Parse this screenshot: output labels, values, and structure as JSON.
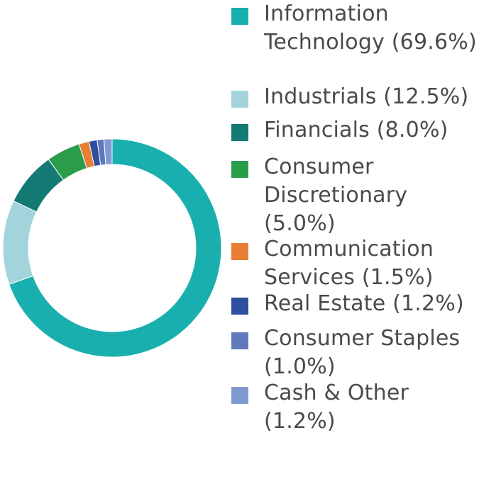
{
  "chart_data": {
    "type": "pie",
    "title": "",
    "donut": true,
    "start_angle_deg": 0,
    "direction": "clockwise",
    "legend_position": "right",
    "categories": [
      "Information Technology (69.6%)",
      "Industrials (12.5%)",
      "Financials (8.0%)",
      "Consumer Discretionary (5.0%)",
      "Communication Services (1.5%)",
      "Real Estate (1.2%)",
      "Consumer Staples (1.0%)",
      "Cash & Other (1.2%)"
    ],
    "values": [
      69.6,
      12.5,
      8.0,
      5.0,
      1.5,
      1.2,
      1.0,
      1.2
    ],
    "colors": [
      "#1aafaf",
      "#a3d4dc",
      "#137a74",
      "#2a9d4a",
      "#e97e35",
      "#2d4f9e",
      "#6078bc",
      "#7f9ad1"
    ]
  }
}
